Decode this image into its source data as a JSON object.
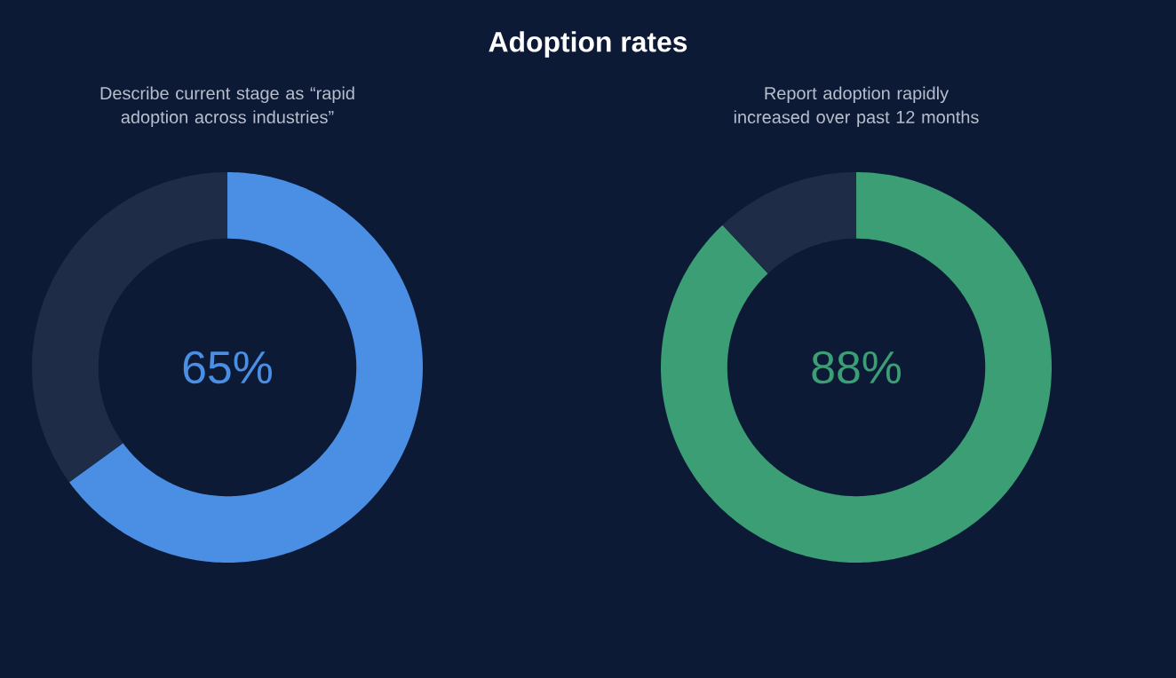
{
  "chart_data": [
    {
      "type": "donut",
      "title": "Adoption rates",
      "subtitle": "Describe current stage as “rapid adoption across industries”",
      "categories": [
        null,
        null
      ],
      "values": [
        65,
        35
      ],
      "colors": [
        "#4a8fe3",
        "#1f2c48"
      ],
      "value_labels": [
        "65%",
        null
      ]
    },
    {
      "type": "donut",
      "subtitle": "Report adoption rapidly increased over past 12 months",
      "categories": [
        null,
        null
      ],
      "values": [
        88,
        12
      ],
      "colors": [
        "#3b9e75",
        "#1f2c48"
      ],
      "value_labels": [
        "88%",
        null
      ]
    }
  ]
}
